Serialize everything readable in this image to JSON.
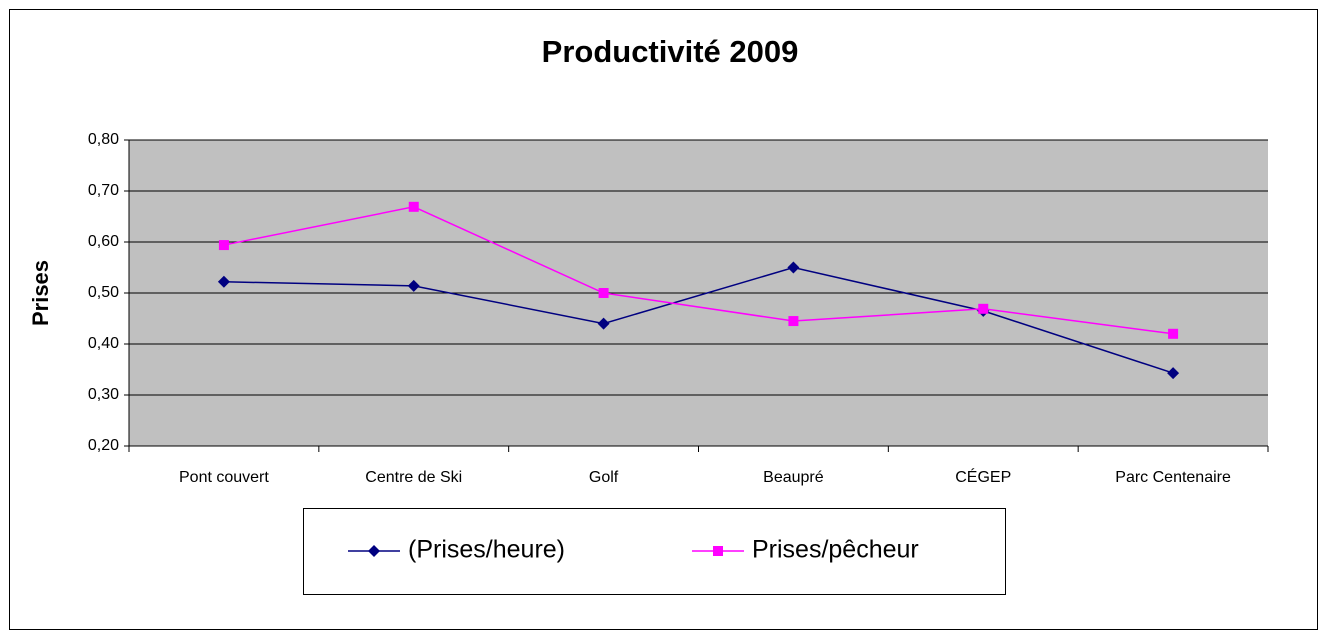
{
  "chart_data": {
    "type": "line",
    "title": "Productivité 2009",
    "y_label": "Prises",
    "categories": [
      "Pont couvert",
      "Centre de Ski",
      "Golf",
      "Beaupré",
      "CÉGEP",
      "Parc Centenaire"
    ],
    "series": [
      {
        "name": "(Prises/heure)",
        "color": "#000080",
        "marker": "diamond",
        "values": [
          0.522,
          0.514,
          0.44,
          0.55,
          0.465,
          0.343
        ]
      },
      {
        "name": "Prises/pêcheur",
        "color": "#ff00ff",
        "marker": "square",
        "values": [
          0.594,
          0.669,
          0.5,
          0.445,
          0.469,
          0.42
        ]
      }
    ],
    "ylim": [
      0.2,
      0.8
    ],
    "yticks": [
      {
        "value": 0.2,
        "label": "0,20"
      },
      {
        "value": 0.3,
        "label": "0,30"
      },
      {
        "value": 0.4,
        "label": "0,40"
      },
      {
        "value": 0.5,
        "label": "0,50"
      },
      {
        "value": 0.6,
        "label": "0,60"
      },
      {
        "value": 0.7,
        "label": "0,70"
      },
      {
        "value": 0.8,
        "label": "0,80"
      }
    ],
    "grid": true,
    "plot_background": "#c0c0c0"
  }
}
